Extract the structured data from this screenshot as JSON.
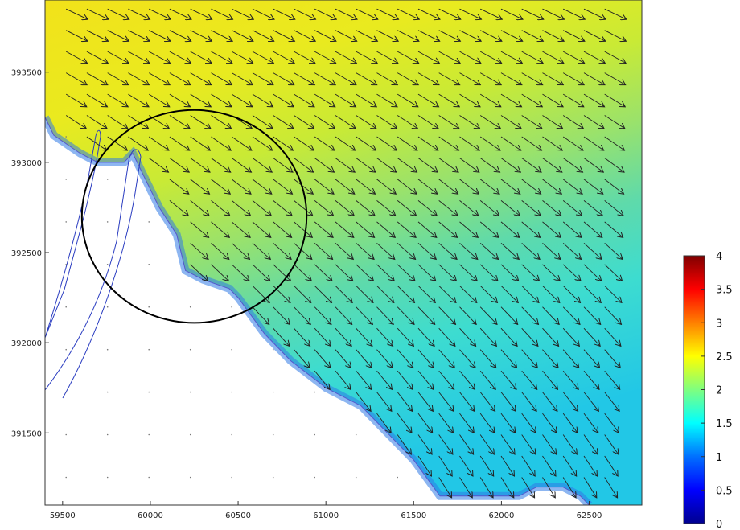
{
  "chart_data": {
    "type": "heatmap",
    "title": "",
    "xlabel": "",
    "ylabel": "",
    "xlim": [
      59400,
      62800
    ],
    "ylim": [
      391100,
      393900
    ],
    "x_ticks": [
      59500,
      60000,
      60500,
      61000,
      61500,
      62000,
      62500
    ],
    "y_ticks": [
      391500,
      392000,
      392500,
      393000,
      393500
    ],
    "x_tick_labels": [
      "59500",
      "60000",
      "60500",
      "61000",
      "61500",
      "62000",
      "62500"
    ],
    "y_tick_labels": [
      "391500",
      "392000",
      "392500",
      "393000",
      "393500"
    ],
    "field": "vector field over colour-shaded magnitude",
    "colormap": "jet",
    "colorbar": {
      "range": [
        0,
        4
      ],
      "ticks": [
        0,
        0.5,
        1,
        1.5,
        2,
        2.5,
        3,
        3.5,
        4
      ],
      "tick_labels": [
        "0",
        "0.5",
        "1",
        "1.5",
        "2",
        "2.5",
        "3",
        "3.5",
        "4"
      ]
    },
    "coastline": [
      [
        59400,
        393250
      ],
      [
        59450,
        393150
      ],
      [
        59600,
        393050
      ],
      [
        59700,
        393000
      ],
      [
        59800,
        393000
      ],
      [
        59850,
        393000
      ],
      [
        59900,
        393050
      ],
      [
        59950,
        392950
      ],
      [
        60050,
        392750
      ],
      [
        60150,
        392600
      ],
      [
        60200,
        392400
      ],
      [
        60300,
        392350
      ],
      [
        60450,
        392300
      ],
      [
        60500,
        392250
      ],
      [
        60650,
        392050
      ],
      [
        60800,
        391900
      ],
      [
        61000,
        391750
      ],
      [
        61200,
        391650
      ],
      [
        61350,
        391500
      ],
      [
        61500,
        391350
      ],
      [
        61650,
        391150
      ],
      [
        61900,
        391150
      ],
      [
        62100,
        391150
      ],
      [
        62200,
        391200
      ],
      [
        62350,
        391200
      ],
      [
        62450,
        391150
      ],
      [
        62500,
        391100
      ]
    ],
    "annotation": {
      "shape": "circle",
      "center": [
        60250,
        392700
      ],
      "radius_x": 640,
      "radius_y": 590
    },
    "grid": false,
    "legend": "colorbar right"
  }
}
